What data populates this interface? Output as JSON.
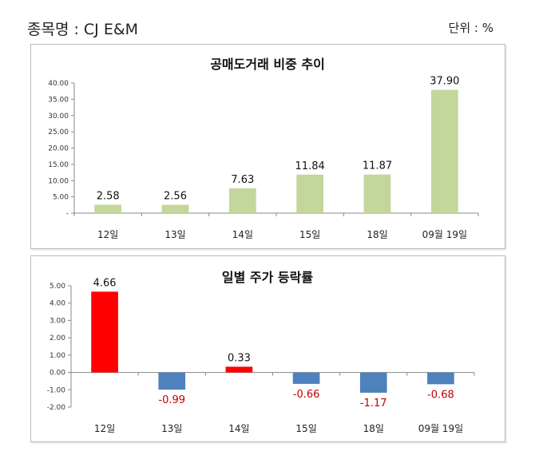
{
  "header": {
    "stock_label": "종목명 : CJ E&M",
    "unit_label": "단위 : %"
  },
  "colors": {
    "green": "#c3d69b",
    "red": "#ff0000",
    "blue": "#4f81bd",
    "neg_label": "#c00000"
  },
  "chart_data": [
    {
      "type": "bar",
      "title": "공매도거래 비중 추이",
      "categories": [
        "12일",
        "13일",
        "14일",
        "15일",
        "18일",
        "09월 19일"
      ],
      "values": [
        2.58,
        2.56,
        7.63,
        11.84,
        11.87,
        37.9
      ],
      "value_labels": [
        "2.58",
        "2.56",
        "7.63",
        "11.84",
        "11.87",
        "37.90"
      ],
      "ylim": [
        0,
        40
      ],
      "yticks": [
        "-",
        "5.00",
        "10.00",
        "15.00",
        "20.00",
        "25.00",
        "30.00",
        "35.00",
        "40.00"
      ],
      "xlabel": "",
      "ylabel": "",
      "grid": false,
      "legend": "none"
    },
    {
      "type": "bar",
      "title": "일별 주가 등락률",
      "categories": [
        "12일",
        "13일",
        "14일",
        "15일",
        "18일",
        "09월 19일"
      ],
      "values": [
        4.66,
        -0.99,
        0.33,
        -0.66,
        -1.17,
        -0.68
      ],
      "value_labels": [
        "4.66",
        "-0.99",
        "0.33",
        "-0.66",
        "-1.17",
        "-0.68"
      ],
      "ylim": [
        -2,
        5
      ],
      "yticks": [
        "-2.00",
        "-1.00",
        "0.00",
        "1.00",
        "2.00",
        "3.00",
        "4.00",
        "5.00"
      ],
      "xlabel": "",
      "ylabel": "",
      "grid": false,
      "legend": "none"
    }
  ]
}
